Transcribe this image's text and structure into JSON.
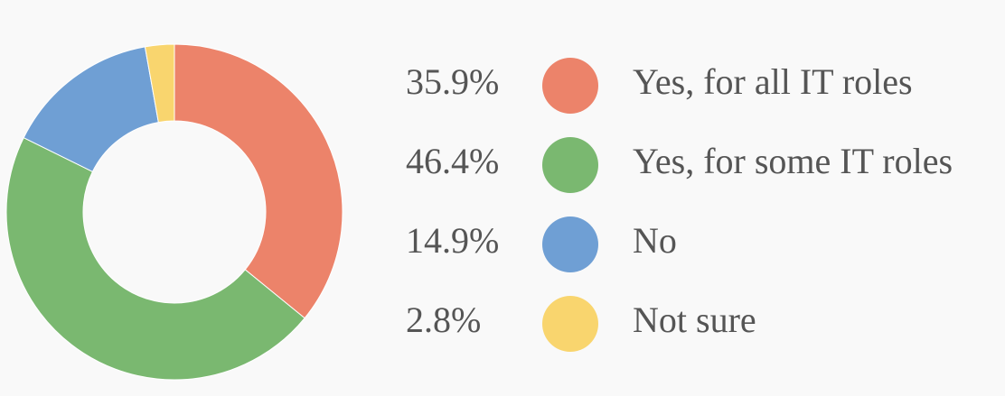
{
  "chart_data": {
    "type": "pie",
    "categories": [
      "Yes, for all IT roles",
      "Yes, for some IT roles",
      "No",
      "Not sure"
    ],
    "values": [
      35.9,
      46.4,
      14.9,
      2.8
    ],
    "value_labels": [
      "35.9%",
      "46.4%",
      "14.9%",
      "2.8%"
    ],
    "colors": [
      "#ec836a",
      "#7ab870",
      "#6f9fd4",
      "#f9d56e"
    ]
  }
}
